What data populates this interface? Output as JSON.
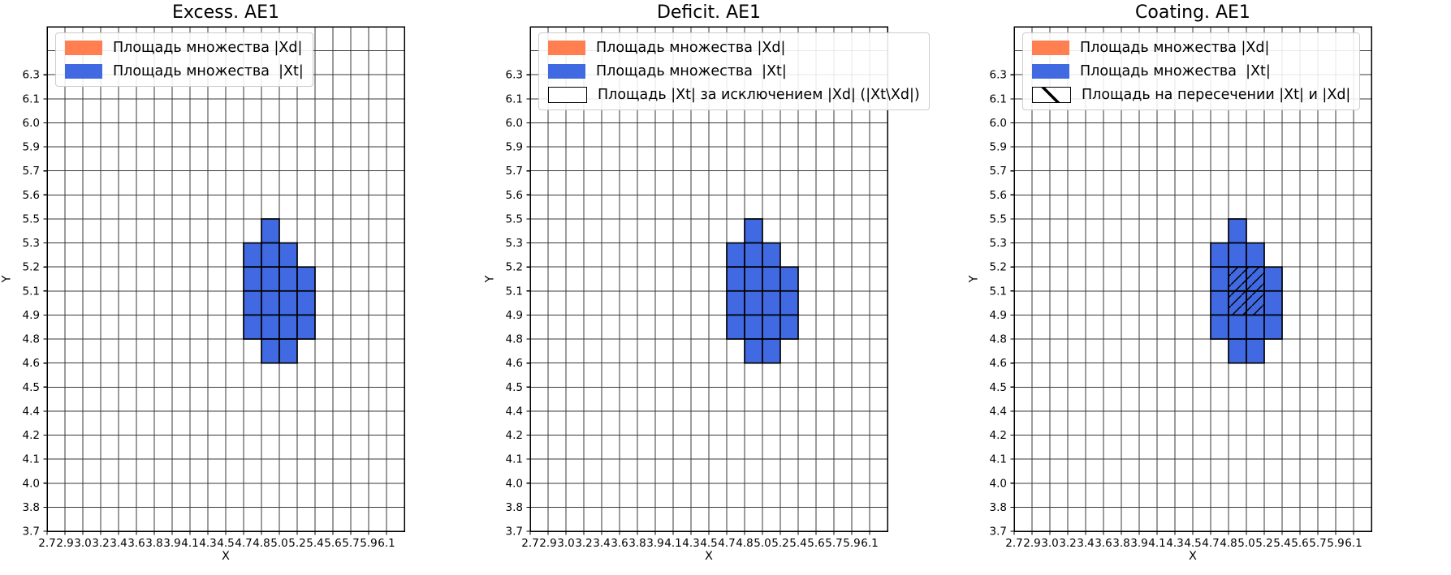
{
  "figure": {
    "background": "#ffffff",
    "x_axis_label": "X",
    "y_axis_label": "Y",
    "colors": {
      "xd_fill": "#FF7F50",
      "xt_fill": "#4169E1",
      "cell_edge": "#000000",
      "grid": "#383838",
      "spine": "#000000",
      "hatch": "#000000",
      "legend_border": "#cccccc"
    }
  },
  "chart_data": [
    {
      "type": "heatmap",
      "title": "Excess. AE1",
      "xlabel": "X",
      "ylabel": "Y",
      "grid": true,
      "legend_position": "upper left",
      "x_tick_labels": [
        "2.7",
        "2.9",
        "3.0",
        "3.2",
        "3.4",
        "3.6",
        "3.8",
        "3.9",
        "4.1",
        "4.3",
        "4.5",
        "4.7",
        "4.8",
        "5.0",
        "5.2",
        "5.4",
        "5.6",
        "5.7",
        "5.9",
        "6.1"
      ],
      "y_tick_labels": [
        "3.7",
        "3.8",
        "4.0",
        "4.1",
        "4.2",
        "4.4",
        "4.5",
        "4.6",
        "4.8",
        "4.9",
        "5.1",
        "5.2",
        "5.3",
        "5.5",
        "5.6",
        "5.7",
        "5.9",
        "6.0",
        "6.1",
        "6.3"
      ],
      "legend": [
        {
          "swatch": "solid-orange",
          "color": "#FF7F50",
          "label": "Площадь множества |Xd|"
        },
        {
          "swatch": "solid-blue",
          "color": "#4169E1",
          "label": "Площадь множества  |Xt|"
        }
      ],
      "blue_cells": [
        [
          4.8,
          5.0,
          5.3,
          5.5
        ],
        [
          4.7,
          4.8,
          5.2,
          5.3
        ],
        [
          4.8,
          5.0,
          5.2,
          5.3
        ],
        [
          5.0,
          5.2,
          5.2,
          5.3
        ],
        [
          4.7,
          4.8,
          5.1,
          5.2
        ],
        [
          4.8,
          5.0,
          5.1,
          5.2
        ],
        [
          5.0,
          5.2,
          5.1,
          5.2
        ],
        [
          5.2,
          5.4,
          5.1,
          5.2
        ],
        [
          4.7,
          4.8,
          4.9,
          5.1
        ],
        [
          4.8,
          5.0,
          4.9,
          5.1
        ],
        [
          5.0,
          5.2,
          4.9,
          5.1
        ],
        [
          5.2,
          5.4,
          4.9,
          5.1
        ],
        [
          4.7,
          4.8,
          4.8,
          4.9
        ],
        [
          4.8,
          5.0,
          4.8,
          4.9
        ],
        [
          5.0,
          5.2,
          4.8,
          4.9
        ],
        [
          5.2,
          5.4,
          4.8,
          4.9
        ],
        [
          4.8,
          5.0,
          4.6,
          4.8
        ],
        [
          5.0,
          5.2,
          4.6,
          4.8
        ]
      ],
      "hatched_cells": []
    },
    {
      "type": "heatmap",
      "title": "Deficit. AE1",
      "xlabel": "X",
      "ylabel": "Y",
      "grid": true,
      "legend_position": "upper left",
      "x_tick_labels": [
        "2.7",
        "2.9",
        "3.0",
        "3.2",
        "3.4",
        "3.6",
        "3.8",
        "3.9",
        "4.1",
        "4.3",
        "4.5",
        "4.7",
        "4.8",
        "5.0",
        "5.2",
        "5.4",
        "5.6",
        "5.7",
        "5.9",
        "6.1"
      ],
      "y_tick_labels": [
        "3.7",
        "3.8",
        "4.0",
        "4.1",
        "4.2",
        "4.4",
        "4.5",
        "4.6",
        "4.8",
        "4.9",
        "5.1",
        "5.2",
        "5.3",
        "5.5",
        "5.6",
        "5.7",
        "5.9",
        "6.0",
        "6.1",
        "6.3"
      ],
      "legend": [
        {
          "swatch": "solid-orange",
          "color": "#FF7F50",
          "label": "Площадь множества |Xd|"
        },
        {
          "swatch": "solid-blue",
          "color": "#4169E1",
          "label": "Площадь множества  |Xt|"
        },
        {
          "swatch": "outline-white",
          "color": "#ffffff",
          "label": "Площадь |Xt| за исключением |Xd| (|Xt\\Xd|)"
        }
      ],
      "blue_cells": [
        [
          4.8,
          5.0,
          5.3,
          5.5
        ],
        [
          4.7,
          4.8,
          5.2,
          5.3
        ],
        [
          4.8,
          5.0,
          5.2,
          5.3
        ],
        [
          5.0,
          5.2,
          5.2,
          5.3
        ],
        [
          4.7,
          4.8,
          5.1,
          5.2
        ],
        [
          4.8,
          5.0,
          5.1,
          5.2
        ],
        [
          5.0,
          5.2,
          5.1,
          5.2
        ],
        [
          5.2,
          5.4,
          5.1,
          5.2
        ],
        [
          4.7,
          4.8,
          4.9,
          5.1
        ],
        [
          4.8,
          5.0,
          4.9,
          5.1
        ],
        [
          5.0,
          5.2,
          4.9,
          5.1
        ],
        [
          5.2,
          5.4,
          4.9,
          5.1
        ],
        [
          4.7,
          4.8,
          4.8,
          4.9
        ],
        [
          4.8,
          5.0,
          4.8,
          4.9
        ],
        [
          5.0,
          5.2,
          4.8,
          4.9
        ],
        [
          5.2,
          5.4,
          4.8,
          4.9
        ],
        [
          4.8,
          5.0,
          4.6,
          4.8
        ],
        [
          5.0,
          5.2,
          4.6,
          4.8
        ]
      ],
      "hatched_cells": []
    },
    {
      "type": "heatmap",
      "title": "Coating. AE1",
      "xlabel": "X",
      "ylabel": "Y",
      "grid": true,
      "legend_position": "upper left",
      "x_tick_labels": [
        "2.7",
        "2.9",
        "3.0",
        "3.2",
        "3.4",
        "3.6",
        "3.8",
        "3.9",
        "4.1",
        "4.3",
        "4.5",
        "4.7",
        "4.8",
        "5.0",
        "5.2",
        "5.4",
        "5.6",
        "5.7",
        "5.9",
        "6.1"
      ],
      "y_tick_labels": [
        "3.7",
        "3.8",
        "4.0",
        "4.1",
        "4.2",
        "4.4",
        "4.5",
        "4.6",
        "4.8",
        "4.9",
        "5.1",
        "5.2",
        "5.3",
        "5.5",
        "5.6",
        "5.7",
        "5.9",
        "6.0",
        "6.1",
        "6.3"
      ],
      "legend": [
        {
          "swatch": "solid-orange",
          "color": "#FF7F50",
          "label": "Площадь множества |Xd|"
        },
        {
          "swatch": "solid-blue",
          "color": "#4169E1",
          "label": "Площадь множества  |Xt|"
        },
        {
          "swatch": "hatch-diagonal",
          "color": "#ffffff",
          "label": "Площадь на пересечении |Xt| и |Xd|"
        }
      ],
      "blue_cells": [
        [
          4.8,
          5.0,
          5.3,
          5.5
        ],
        [
          4.7,
          4.8,
          5.2,
          5.3
        ],
        [
          4.8,
          5.0,
          5.2,
          5.3
        ],
        [
          5.0,
          5.2,
          5.2,
          5.3
        ],
        [
          4.7,
          4.8,
          5.1,
          5.2
        ],
        [
          4.8,
          5.0,
          5.1,
          5.2
        ],
        [
          5.0,
          5.2,
          5.1,
          5.2
        ],
        [
          5.2,
          5.4,
          5.1,
          5.2
        ],
        [
          4.7,
          4.8,
          4.9,
          5.1
        ],
        [
          4.8,
          5.0,
          4.9,
          5.1
        ],
        [
          5.0,
          5.2,
          4.9,
          5.1
        ],
        [
          5.2,
          5.4,
          4.9,
          5.1
        ],
        [
          4.7,
          4.8,
          4.8,
          4.9
        ],
        [
          4.8,
          5.0,
          4.8,
          4.9
        ],
        [
          5.0,
          5.2,
          4.8,
          4.9
        ],
        [
          5.2,
          5.4,
          4.8,
          4.9
        ],
        [
          4.8,
          5.0,
          4.6,
          4.8
        ],
        [
          5.0,
          5.2,
          4.6,
          4.8
        ]
      ],
      "hatched_cells": [
        [
          4.8,
          5.0,
          5.1,
          5.2
        ],
        [
          5.0,
          5.2,
          5.1,
          5.2
        ],
        [
          4.8,
          5.0,
          4.9,
          5.1
        ],
        [
          5.0,
          5.2,
          4.9,
          5.1
        ]
      ]
    }
  ]
}
